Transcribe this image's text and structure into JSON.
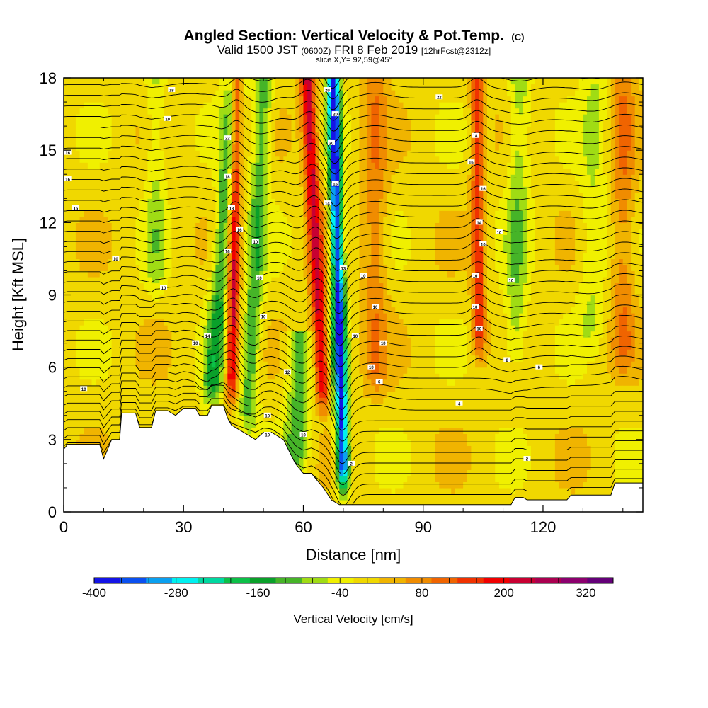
{
  "chart_data": {
    "type": "heatmap",
    "title": "Angled Section: Vertical Velocity & Pot.Temp.",
    "title_suffix": "(C)",
    "subtitle": {
      "pre": "Valid 1500 JST",
      "utc": "(0600Z)",
      "date": "FRI 8 Feb 2019",
      "fcst": "[12hrFcst@2312z]"
    },
    "slice_label": "slice X,Y= 92,59@45°",
    "xlabel": "Distance [nm]",
    "ylabel": "Height [Kft MSL]",
    "xlim": [
      0,
      145
    ],
    "ylim": [
      0,
      18
    ],
    "x_ticks": [
      0,
      30,
      60,
      90,
      120
    ],
    "y_ticks": [
      0,
      3,
      6,
      9,
      12,
      15,
      18
    ],
    "colorbar": {
      "label": "Vertical Velocity [cm/s]",
      "min": -400,
      "max": 360,
      "step": 40,
      "tick_labels": [
        -400,
        -280,
        -160,
        -40,
        80,
        200,
        320
      ],
      "colors": [
        "#1414e6",
        "#0a50f0",
        "#0aa0f0",
        "#00f0f0",
        "#00d8a0",
        "#0cc048",
        "#0aa02a",
        "#46b428",
        "#a0dc14",
        "#f0f000",
        "#f0d800",
        "#f0b400",
        "#f08c00",
        "#f06400",
        "#f03200",
        "#f00000",
        "#c80032",
        "#aa0050",
        "#8c006e",
        "#640078"
      ]
    },
    "background_level": 20,
    "features": [
      {
        "type": "downdraft",
        "x_center": 37,
        "width": 2.5,
        "z_bottom": 4.5,
        "z_top": 18,
        "tilt_nm_per_kft": 0.45,
        "peak_cm_s": -150
      },
      {
        "type": "updraft",
        "x_center": 42,
        "width": 1.5,
        "z_bottom": 4.8,
        "z_top": 18,
        "tilt_nm_per_kft": 0.1,
        "peak_cm_s": 250
      },
      {
        "type": "downdraft",
        "x_center": 46,
        "width": 2.3,
        "z_bottom": 3.5,
        "z_top": 18,
        "tilt_nm_per_kft": 0.3,
        "peak_cm_s": -130
      },
      {
        "type": "downdraft",
        "x_center": 58,
        "width": 3.0,
        "z_bottom": 1.5,
        "z_top": 7,
        "tilt_nm_per_kft": 0.2,
        "peak_cm_s": -120
      },
      {
        "type": "updraft",
        "x_center": 65,
        "width": 1.8,
        "z_bottom": 4.5,
        "z_top": 18,
        "tilt_nm_per_kft": -0.3,
        "peak_cm_s": 240
      },
      {
        "type": "downdraft",
        "x_center": 70,
        "width": 1.6,
        "z_bottom": 1.0,
        "z_top": 18,
        "tilt_nm_per_kft": -0.15,
        "peak_cm_s": -400
      },
      {
        "type": "updraft",
        "x_center": 104,
        "width": 1.6,
        "z_bottom": 6.5,
        "z_top": 18,
        "tilt_nm_per_kft": -0.05,
        "peak_cm_s": 170
      },
      {
        "type": "downdraft",
        "x_center": 113,
        "width": 2.8,
        "z_bottom": 6,
        "z_top": 18,
        "tilt_nm_per_kft": 0.1,
        "peak_cm_s": -90
      },
      {
        "type": "downdraft",
        "x_center": 132,
        "width": 3.5,
        "z_bottom": 7,
        "z_top": 18,
        "tilt_nm_per_kft": 0.1,
        "peak_cm_s": -60
      },
      {
        "type": "downdraft",
        "x_center": 23,
        "width": 2.5,
        "z_bottom": 9,
        "z_top": 18,
        "tilt_nm_per_kft": 0.0,
        "peak_cm_s": -70
      },
      {
        "type": "updraft",
        "x_center": 78,
        "width": 3.0,
        "z_bottom": 5,
        "z_top": 18,
        "tilt_nm_per_kft": 0.0,
        "peak_cm_s": 90
      },
      {
        "type": "updraft",
        "x_center": 140,
        "width": 3.0,
        "z_bottom": 6,
        "z_top": 18,
        "tilt_nm_per_kft": 0.0,
        "peak_cm_s": 90
      }
    ],
    "terrain_profile": [
      [
        0,
        2.6
      ],
      [
        1,
        2.8
      ],
      [
        9,
        2.8
      ],
      [
        10,
        2.2
      ],
      [
        11,
        2.6
      ],
      [
        12,
        3.0
      ],
      [
        14,
        3.0
      ],
      [
        14.5,
        4.1
      ],
      [
        18,
        4.1
      ],
      [
        19,
        3.5
      ],
      [
        22,
        3.5
      ],
      [
        23,
        4.2
      ],
      [
        26,
        4.2
      ],
      [
        28,
        4.0
      ],
      [
        30,
        4.3
      ],
      [
        33,
        4.3
      ],
      [
        34,
        4.0
      ],
      [
        36,
        4.0
      ],
      [
        37,
        4.4
      ],
      [
        40,
        4.4
      ],
      [
        41,
        3.9
      ],
      [
        42,
        3.6
      ],
      [
        45,
        3.3
      ],
      [
        48,
        3.0
      ],
      [
        50,
        3.3
      ],
      [
        52,
        3.3
      ],
      [
        55,
        3.0
      ],
      [
        58,
        2.0
      ],
      [
        60,
        1.6
      ],
      [
        62,
        1.6
      ],
      [
        65,
        1.0
      ],
      [
        67,
        0.5
      ],
      [
        69,
        0.3
      ],
      [
        105,
        0.3
      ],
      [
        112,
        0.3
      ],
      [
        113,
        0.6
      ],
      [
        115,
        0.6
      ],
      [
        116,
        0.5
      ],
      [
        126,
        0.5
      ],
      [
        127,
        0.7
      ],
      [
        137,
        0.7
      ],
      [
        138,
        1.2
      ],
      [
        145,
        1.2
      ]
    ],
    "theta_contours": {
      "levels": 46,
      "spacing_kft": 0.45,
      "start_kft": 0.5
    },
    "contour_labels": [
      {
        "x": 27,
        "z": 17.5,
        "text": "18"
      },
      {
        "x": 26,
        "z": 16.3,
        "text": "10"
      },
      {
        "x": 1,
        "z": 14.9,
        "text": "16"
      },
      {
        "x": 1,
        "z": 13.8,
        "text": "16"
      },
      {
        "x": 3,
        "z": 12.6,
        "text": "15"
      },
      {
        "x": 13,
        "z": 10.5,
        "text": "10"
      },
      {
        "x": 25,
        "z": 9.3,
        "text": "10"
      },
      {
        "x": 41,
        "z": 15.5,
        "text": "22"
      },
      {
        "x": 41,
        "z": 13.9,
        "text": "18"
      },
      {
        "x": 42,
        "z": 12.6,
        "text": "18"
      },
      {
        "x": 44,
        "z": 11.7,
        "text": "16"
      },
      {
        "x": 48,
        "z": 11.2,
        "text": "10"
      },
      {
        "x": 41,
        "z": 10.8,
        "text": "16"
      },
      {
        "x": 49,
        "z": 9.7,
        "text": "10"
      },
      {
        "x": 50,
        "z": 8.1,
        "text": "10"
      },
      {
        "x": 36,
        "z": 7.3,
        "text": "14"
      },
      {
        "x": 33,
        "z": 7.0,
        "text": "10"
      },
      {
        "x": 56,
        "z": 5.8,
        "text": "12"
      },
      {
        "x": 51,
        "z": 4.0,
        "text": "10"
      },
      {
        "x": 51,
        "z": 3.2,
        "text": "10"
      },
      {
        "x": 60,
        "z": 3.2,
        "text": "10"
      },
      {
        "x": 66,
        "z": 17.5,
        "text": "20"
      },
      {
        "x": 68,
        "z": 16.5,
        "text": "20"
      },
      {
        "x": 67,
        "z": 15.3,
        "text": "20"
      },
      {
        "x": 68,
        "z": 13.6,
        "text": "16"
      },
      {
        "x": 66,
        "z": 12.8,
        "text": "14"
      },
      {
        "x": 70,
        "z": 10.1,
        "text": "13"
      },
      {
        "x": 75,
        "z": 9.8,
        "text": "10"
      },
      {
        "x": 78,
        "z": 8.5,
        "text": "10"
      },
      {
        "x": 73,
        "z": 7.3,
        "text": "10"
      },
      {
        "x": 80,
        "z": 7.0,
        "text": "10"
      },
      {
        "x": 77,
        "z": 6.0,
        "text": "10"
      },
      {
        "x": 79,
        "z": 5.4,
        "text": "6"
      },
      {
        "x": 72,
        "z": 2.0,
        "text": "2"
      },
      {
        "x": 94,
        "z": 17.2,
        "text": "22"
      },
      {
        "x": 103,
        "z": 15.6,
        "text": "18"
      },
      {
        "x": 102,
        "z": 14.5,
        "text": "16"
      },
      {
        "x": 105,
        "z": 13.4,
        "text": "16"
      },
      {
        "x": 104,
        "z": 12.0,
        "text": "14"
      },
      {
        "x": 109,
        "z": 11.6,
        "text": "10"
      },
      {
        "x": 105,
        "z": 11.1,
        "text": "10"
      },
      {
        "x": 103,
        "z": 9.8,
        "text": "10"
      },
      {
        "x": 112,
        "z": 9.6,
        "text": "10"
      },
      {
        "x": 103,
        "z": 8.5,
        "text": "10"
      },
      {
        "x": 104,
        "z": 7.6,
        "text": "10"
      },
      {
        "x": 111,
        "z": 6.3,
        "text": "8"
      },
      {
        "x": 119,
        "z": 6.0,
        "text": "6"
      },
      {
        "x": 99,
        "z": 4.5,
        "text": "4"
      },
      {
        "x": 116,
        "z": 2.2,
        "text": "2"
      },
      {
        "x": 5,
        "z": 5.1,
        "text": "10"
      }
    ]
  }
}
